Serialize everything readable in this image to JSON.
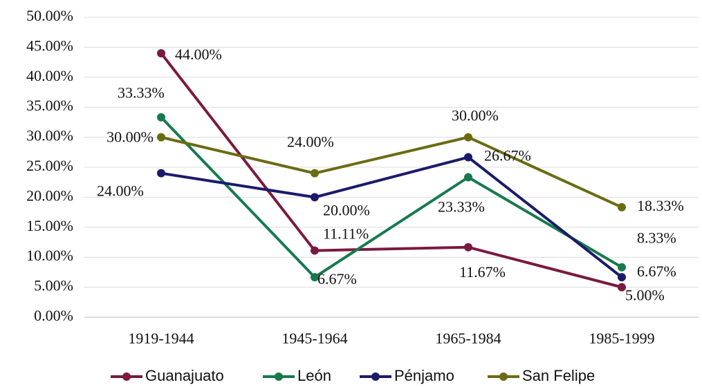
{
  "chart_data": {
    "type": "line",
    "categories": [
      "1919-1944",
      "1945-1964",
      "1965-1984",
      "1985-1999"
    ],
    "series": [
      {
        "name": "Guanajuato",
        "color": "#7a1a3f",
        "values": [
          44.0,
          11.11,
          11.67,
          5.0
        ],
        "value_labels": [
          "44.00%",
          "11.11%",
          "11.67%",
          "5.00%"
        ]
      },
      {
        "name": "León",
        "color": "#177a4f",
        "values": [
          33.33,
          6.67,
          23.33,
          8.33
        ],
        "value_labels": [
          "33.33%",
          "6.67%",
          "23.33%",
          "8.33%"
        ]
      },
      {
        "name": "Pénjamo",
        "color": "#1b1b6b",
        "values": [
          24.0,
          20.0,
          26.67,
          6.67
        ],
        "value_labels": [
          "24.00%",
          "20.00%",
          "26.67%",
          "6.67%"
        ]
      },
      {
        "name": "San Felipe",
        "color": "#6b6b12",
        "values": [
          30.0,
          24.0,
          30.0,
          18.33
        ],
        "value_labels": [
          "30.00%",
          "24.00%",
          "30.00%",
          "18.33%"
        ]
      }
    ],
    "ylim": [
      0,
      50
    ],
    "yticks": [
      {
        "value": 0,
        "label": "0.00%"
      },
      {
        "value": 5,
        "label": "5.00%"
      },
      {
        "value": 10,
        "label": "10.00%"
      },
      {
        "value": 15,
        "label": "15.00%"
      },
      {
        "value": 20,
        "label": "20.00%"
      },
      {
        "value": 25,
        "label": "25.00%"
      },
      {
        "value": 30,
        "label": "30.00%"
      },
      {
        "value": 35,
        "label": "35.00%"
      },
      {
        "value": 40,
        "label": "40.00%"
      },
      {
        "value": 45,
        "label": "45.00%"
      },
      {
        "value": 50,
        "label": "50.00%"
      }
    ],
    "grid": true,
    "legend": "bottom"
  }
}
